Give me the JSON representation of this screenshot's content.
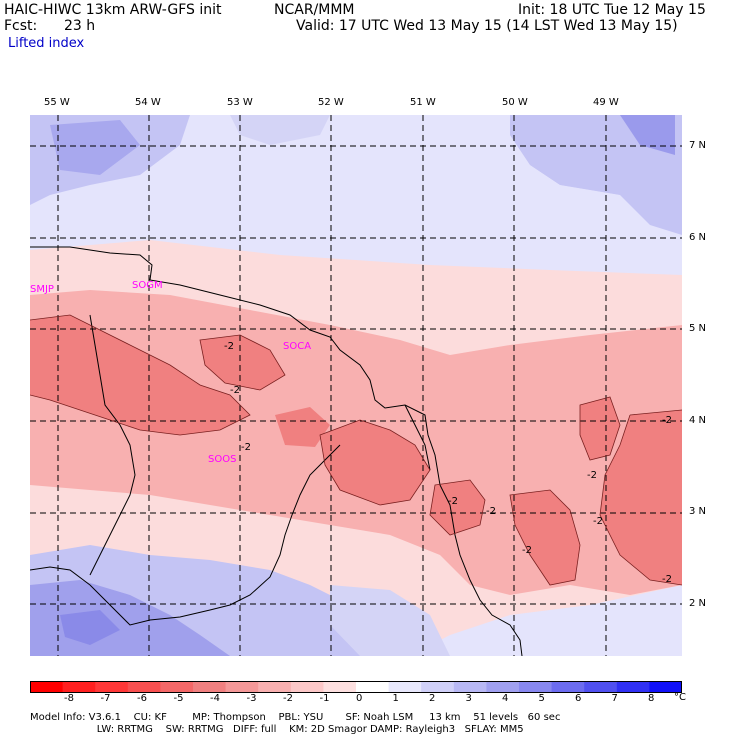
{
  "header": {
    "model": "HAIC-HIWC 13km ARW-GFS init",
    "org": "NCAR/MMM",
    "init": "Init: 18 UTC Tue 12 May 15",
    "fcst_label": "Fcst:",
    "fcst_value": "23 h",
    "valid": "Valid: 17 UTC Wed 13 May 15 (14 LST Wed 13 May 15)",
    "field": "Lifted index"
  },
  "map": {
    "lon_labels": [
      "55 W",
      "54 W",
      "53 W",
      "52 W",
      "51 W",
      "50 W",
      "49 W"
    ],
    "lat_labels": [
      "7 N",
      "6 N",
      "5 N",
      "4 N",
      "3 N",
      "2 N"
    ],
    "stations": [
      "SMJP",
      "SOGM",
      "SOCA",
      "SOOS"
    ],
    "contour_labels": [
      "-2",
      "-2",
      "-2",
      "-2",
      "-2",
      "-2",
      "-2",
      "-2",
      "-2",
      "-2"
    ],
    "colors": {
      "strong_negative": "#f08080",
      "negative": "#f8b0b0",
      "slight_negative": "#fcdcdc",
      "neutral": "#ffffff",
      "slight_positive": "#e4e4fc",
      "positive": "#c4c4f4",
      "more_positive": "#a0a0ec"
    }
  },
  "colorbar": {
    "ticks": [
      "-8",
      "-7",
      "-6",
      "-5",
      "-4",
      "-3",
      "-2",
      "-1",
      "0",
      "1",
      "2",
      "3",
      "4",
      "5",
      "6",
      "7",
      "8"
    ],
    "unit": "°C",
    "colors": [
      "#ff0000",
      "#ff2020",
      "#ff3838",
      "#f85050",
      "#f46868",
      "#f08080",
      "#f49898",
      "#f8b0b0",
      "#fcc8c8",
      "#fde0e0",
      "#ffffff",
      "#e8e8fc",
      "#d0d0f8",
      "#b8b8f4",
      "#a0a0f0",
      "#8888f0",
      "#6c6cf0",
      "#5050f0",
      "#3030f4",
      "#1010f8"
    ]
  },
  "footer": {
    "line1": "Model Info: V3.6.1    CU: KF        MP: Thompson    PBL: YSU       SF: Noah LSM     13 km    51 levels   60 sec",
    "line2": "                     LW: RRTMG    SW: RRTMG   DIFF: full    KM: 2D Smagor DAMP: Rayleigh3   SFLAY: MM5"
  }
}
